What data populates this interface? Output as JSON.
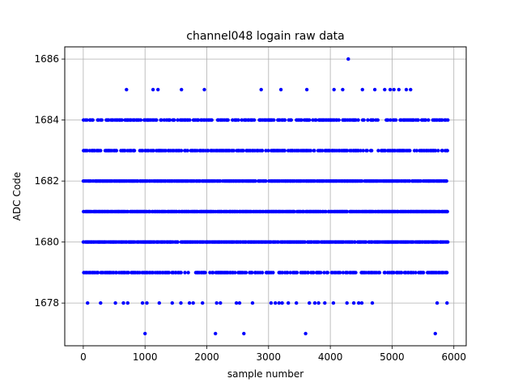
{
  "chart_data": {
    "type": "scatter",
    "title": "channel048 logain raw data",
    "xlabel": "sample number",
    "ylabel": "ADC Code",
    "xlim": [
      -300,
      6200
    ],
    "ylim": [
      1676.6,
      1686.4
    ],
    "x_ticks": [
      0,
      1000,
      2000,
      3000,
      4000,
      5000,
      6000
    ],
    "x_tick_labels": [
      "0",
      "1000",
      "2000",
      "3000",
      "4000",
      "5000",
      "6000"
    ],
    "y_ticks": [
      1678,
      1680,
      1682,
      1684,
      1686
    ],
    "y_tick_labels": [
      "1678",
      "1680",
      "1682",
      "1684",
      "1686"
    ],
    "grid": true,
    "marker_color": "#0000ff",
    "x_range": [
      0,
      5900
    ],
    "levels": [
      1679,
      1680,
      1681,
      1682,
      1683,
      1684
    ],
    "sparse_points": {
      "1677": [
        1000,
        2140,
        2600,
        3600,
        5700
      ],
      "1678": [
        70,
        280,
        520,
        650,
        720,
        960,
        1030,
        1230,
        1440,
        1580,
        1720,
        1780,
        1930,
        2160,
        2220,
        2480,
        2530,
        2740,
        3040,
        3110,
        3170,
        3220,
        3320,
        3450,
        3660,
        3750,
        3810,
        3910,
        4050,
        4270,
        4380,
        4460,
        4510,
        4680,
        5730,
        5890
      ],
      "1685": [
        700,
        1130,
        1210,
        1590,
        1960,
        2880,
        3200,
        3620,
        4060,
        4200,
        4520,
        4720,
        4880,
        4970,
        5030,
        5110,
        5230,
        5300
      ],
      "1686": [
        4290
      ]
    }
  }
}
